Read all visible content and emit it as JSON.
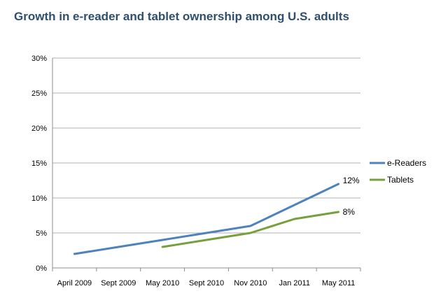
{
  "chart_data": {
    "type": "line",
    "title": "Growth in e-reader and tablet ownership among U.S. adults",
    "xlabel": "",
    "ylabel": "",
    "categories": [
      "April 2009",
      "Sept 2009",
      "May 2010",
      "Sept 2010",
      "Nov 2010",
      "Jan 2011",
      "May 2011"
    ],
    "y_ticks": [
      "0%",
      "5%",
      "10%",
      "15%",
      "20%",
      "25%",
      "30%"
    ],
    "ylim": [
      0,
      30
    ],
    "grid": true,
    "legend_position": "right",
    "series": [
      {
        "name": "e-Readers",
        "color": "#4f81bd",
        "values": [
          2,
          3,
          4,
          5,
          6,
          9,
          12
        ],
        "end_label": "12%"
      },
      {
        "name": "Tablets",
        "color": "#77a03c",
        "values": [
          null,
          null,
          3,
          4,
          5,
          7,
          8
        ],
        "end_label": "8%"
      }
    ]
  }
}
